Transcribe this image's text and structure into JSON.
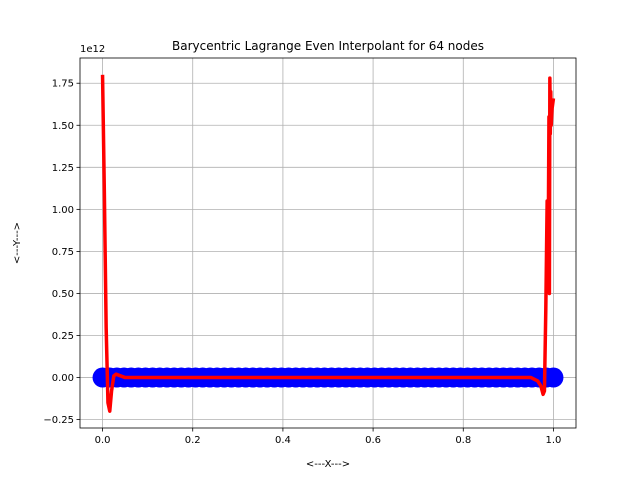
{
  "chart_data": {
    "type": "line",
    "title": "Barycentric Lagrange Even Interpolant for 64 nodes",
    "xlabel": "<---X--->",
    "ylabel": "<---Y--->",
    "y_offset_label": "1e12",
    "xlim": [
      -0.05,
      1.05
    ],
    "ylim": [
      -0.3,
      1.9
    ],
    "xticks": [
      0.0,
      0.2,
      0.4,
      0.6,
      0.8,
      1.0
    ],
    "xtick_labels": [
      "0.0",
      "0.2",
      "0.4",
      "0.6",
      "0.8",
      "1.0"
    ],
    "yticks": [
      -0.25,
      0.0,
      0.25,
      0.5,
      0.75,
      1.0,
      1.25,
      1.5,
      1.75
    ],
    "ytick_labels": [
      "−0.25",
      "0.00",
      "0.25",
      "0.50",
      "0.75",
      "1.00",
      "1.25",
      "1.50",
      "1.75"
    ],
    "grid": true,
    "series": [
      {
        "role": "nodes",
        "style": "markers",
        "color": "#0000ff",
        "x_range": [
          0.0,
          1.0
        ],
        "count": 64,
        "y_value": 0.0
      },
      {
        "role": "interpolant",
        "style": "line",
        "color": "#ff0000",
        "x": [
          0.0,
          0.004,
          0.008,
          0.012,
          0.016,
          0.02,
          0.025,
          0.03,
          0.05,
          0.1,
          0.3,
          0.5,
          0.7,
          0.9,
          0.95,
          0.965,
          0.972,
          0.977,
          0.98,
          0.983,
          0.986,
          0.988,
          0.99,
          0.991,
          0.992,
          0.993,
          0.994,
          0.995,
          0.996,
          0.997,
          0.998,
          1.0
        ],
        "y": [
          1.8,
          1.1,
          0.3,
          -0.15,
          -0.2,
          -0.08,
          0.01,
          0.02,
          0.0,
          0.0,
          0.0,
          0.0,
          0.0,
          0.0,
          0.0,
          -0.02,
          -0.05,
          -0.1,
          -0.08,
          0.4,
          1.05,
          0.6,
          1.55,
          0.5,
          1.78,
          1.45,
          1.7,
          1.5,
          1.55,
          1.6,
          1.62,
          1.66
        ]
      }
    ]
  }
}
